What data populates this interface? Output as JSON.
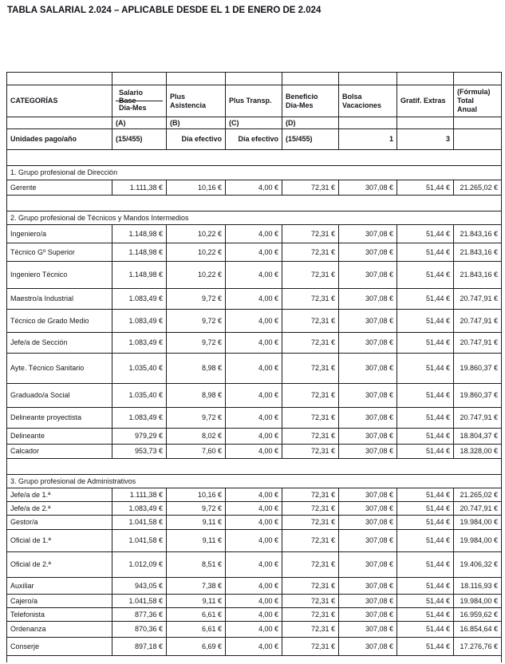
{
  "page_title": "TABLA SALARIAL 2.024 – APLICABLE DESDE EL 1 DE ENERO DE 2.024",
  "table": {
    "header": {
      "categories": "CATEGORÍAS",
      "salario_base": "Salario Base",
      "dia_mes": "Día-Mes",
      "plus_asistencia": [
        "Plus",
        "Asistencia"
      ],
      "plus_transp": [
        "Plus Transp."
      ],
      "beneficio": [
        "Beneficio",
        "Día-Mes"
      ],
      "bolsa": [
        "Bolsa",
        "Vacaciones"
      ],
      "gratif": [
        "Gratif. Extras"
      ],
      "formula": [
        "(Fórmula)",
        "Total",
        "Anual"
      ],
      "letters": [
        "(A)",
        "(B)",
        "(C)",
        "(D)"
      ],
      "units": {
        "label": "Unidades pago/año",
        "salario_base": "(15/455)",
        "plus_asistencia": "Día efectivo",
        "plus_transp": "Día efectivo",
        "beneficio": "(15/455)",
        "bolsa": "1",
        "gratif": "3"
      }
    },
    "groups": [
      {
        "caption": "1. Grupo profesional de Dirección",
        "rows": [
          {
            "category": "Gerente",
            "values": [
              "1.111,38 €",
              "10,16 €",
              "4,00 €",
              "72,31 €",
              "307,08 €",
              "51,44 €",
              "21.265,02 €"
            ]
          }
        ]
      },
      {
        "caption": "2. Grupo profesional de Técnicos y Mandos Intermedios",
        "rows": [
          {
            "category": "Ingeniero/a",
            "values": [
              "1.148,98 €",
              "10,22 €",
              "4,00 €",
              "72,31 €",
              "307,08 €",
              "51,44 €",
              "21.843,16 €"
            ]
          },
          {
            "category": "Técnico Gº Superior",
            "values": [
              "1.148,98 €",
              "10,22 €",
              "4,00 €",
              "72,31 €",
              "307,08 €",
              "51,44 €",
              "21.843,16 €"
            ]
          },
          {
            "category": "Ingeniero Técnico",
            "values": [
              "1.148,98 €",
              "10,22 €",
              "4,00 €",
              "72,31 €",
              "307,08 €",
              "51,44 €",
              "21.843,16 €"
            ]
          },
          {
            "category": "Maestro/a Industrial",
            "values": [
              "1.083,49 €",
              "9,72 €",
              "4,00 €",
              "72,31 €",
              "307,08 €",
              "51,44 €",
              "20.747,91 €"
            ]
          },
          {
            "category": "Técnico de Grado Medio",
            "values": [
              "1.083,49 €",
              "9,72 €",
              "4,00 €",
              "72,31 €",
              "307,08 €",
              "51,44 €",
              "20.747,91 €"
            ]
          },
          {
            "category": "Jefe/a de Sección",
            "values": [
              "1.083,49 €",
              "9,72 €",
              "4,00 €",
              "72,31 €",
              "307,08 €",
              "51,44 €",
              "20.747,91 €"
            ]
          },
          {
            "category": "Ayte. Técnico Sanitario",
            "values": [
              "1.035,40 €",
              "8,98 €",
              "4,00 €",
              "72,31 €",
              "307,08 €",
              "51,44 €",
              "19.860,37 €"
            ]
          },
          {
            "category": "Graduado/a Social",
            "values": [
              "1.035,40 €",
              "8,98 €",
              "4,00 €",
              "72,31 €",
              "307,08 €",
              "51,44 €",
              "19.860,37 €"
            ]
          },
          {
            "category": "Delineante proyectista",
            "values": [
              "1.083,49 €",
              "9,72 €",
              "4,00 €",
              "72,31 €",
              "307,08 €",
              "51,44 €",
              "20.747,91 €"
            ]
          },
          {
            "category": "Delineante",
            "values": [
              "979,29 €",
              "8,02 €",
              "4,00 €",
              "72,31 €",
              "307,08 €",
              "51,44 €",
              "18.804,37 €"
            ]
          },
          {
            "category": "Calcador",
            "values": [
              "953,73 €",
              "7,60 €",
              "4,00 €",
              "72,31 €",
              "307,08 €",
              "51,44 €",
              "18.328,00 €"
            ]
          }
        ]
      },
      {
        "caption": "3. Grupo profesional de Administrativos",
        "rows": [
          {
            "category": "Jefe/a de 1.ª",
            "values": [
              "1.111,38 €",
              "10,16 €",
              "4,00 €",
              "72,31 €",
              "307,08 €",
              "51,44 €",
              "21.265,02 €"
            ]
          },
          {
            "category": "Jefe/a de 2.ª",
            "values": [
              "1.083,49 €",
              "9,72 €",
              "4,00 €",
              "72,31 €",
              "307,08 €",
              "51,44 €",
              "20.747,91 €"
            ]
          },
          {
            "category": "Gestor/a",
            "values": [
              "1.041,58 €",
              "9,11 €",
              "4,00 €",
              "72,31 €",
              "307,08 €",
              "51,44 €",
              "19.984,00 €"
            ]
          },
          {
            "category": "Oficial de 1.ª",
            "values": [
              "1.041,58 €",
              "9,11 €",
              "4,00 €",
              "72,31 €",
              "307,08 €",
              "51,44 €",
              "19.984,00 €"
            ]
          },
          {
            "category": "Oficial de 2.ª",
            "values": [
              "1.012,09 €",
              "8,51 €",
              "4,00 €",
              "72,31 €",
              "307,08 €",
              "51,44 €",
              "19.406,32 €"
            ]
          },
          {
            "category": "Auxiliar",
            "values": [
              "943,05 €",
              "7,38 €",
              "4,00 €",
              "72,31 €",
              "307,08 €",
              "51,44 €",
              "18.116,93 €"
            ]
          },
          {
            "category": "Cajero/a",
            "values": [
              "1.041,58 €",
              "9,11 €",
              "4,00 €",
              "72,31 €",
              "307,08 €",
              "51,44 €",
              "19.984,00 €"
            ]
          },
          {
            "category": "Telefonista",
            "values": [
              "877,36 €",
              "6,61 €",
              "4,00 €",
              "72,31 €",
              "307,08 €",
              "51,44 €",
              "16.959,62 €"
            ]
          },
          {
            "category": "Ordenanza",
            "values": [
              "870,36 €",
              "6,61 €",
              "4,00 €",
              "72,31 €",
              "307,08 €",
              "51,44 €",
              "16.854,64 €"
            ]
          },
          {
            "category": "Conserje",
            "values": [
              "897,18 €",
              "6,69 €",
              "4,00 €",
              "72,31 €",
              "307,08 €",
              "51,44 €",
              "17.276,76 €"
            ]
          }
        ]
      }
    ]
  }
}
